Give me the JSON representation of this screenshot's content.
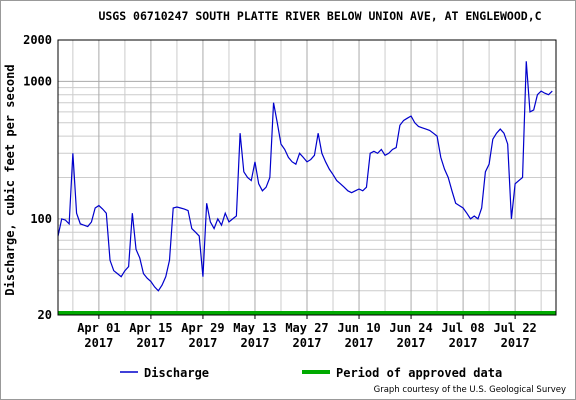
{
  "chart_data": {
    "type": "line",
    "title": "USGS 06710247 SOUTH PLATTE RIVER BELOW UNION AVE, AT ENGLEWOOD,C",
    "y_label": "Discharge, cubic feet per second",
    "credit": "Graph courtesy of the U.S. Geological Survey",
    "log_y": true,
    "grid": true,
    "xlim": [
      "2017-03-21",
      "2017-08-02"
    ],
    "xticks": [
      {
        "value": "2017-04-01",
        "label": "Apr 01 2017"
      },
      {
        "value": "2017-04-15",
        "label": "Apr 15 2017"
      },
      {
        "value": "2017-04-29",
        "label": "Apr 29 2017"
      },
      {
        "value": "2017-05-13",
        "label": "May 13 2017"
      },
      {
        "value": "2017-05-27",
        "label": "May 27 2017"
      },
      {
        "value": "2017-06-10",
        "label": "Jun 10 2017"
      },
      {
        "value": "2017-06-24",
        "label": "Jun 24 2017"
      },
      {
        "value": "2017-07-08",
        "label": "Jul 08 2017"
      },
      {
        "value": "2017-07-22",
        "label": "Jul 22 2017"
      }
    ],
    "xminor": [
      "2017-03-25",
      "2017-04-08",
      "2017-04-22",
      "2017-05-06",
      "2017-05-20",
      "2017-06-03",
      "2017-06-17",
      "2017-07-01",
      "2017-07-15",
      "2017-07-29"
    ],
    "ylim": [
      20,
      2000
    ],
    "yticks": [
      20,
      100,
      1000,
      2000
    ],
    "yminor": [
      30,
      40,
      50,
      60,
      70,
      80,
      90,
      200,
      300,
      400,
      500,
      600,
      700,
      800,
      900
    ],
    "x": [
      "2017-03-21",
      "2017-03-22",
      "2017-03-23",
      "2017-03-24",
      "2017-03-25",
      "2017-03-26",
      "2017-03-27",
      "2017-03-28",
      "2017-03-29",
      "2017-03-30",
      "2017-03-31",
      "2017-04-01",
      "2017-04-02",
      "2017-04-03",
      "2017-04-04",
      "2017-04-05",
      "2017-04-06",
      "2017-04-07",
      "2017-04-08",
      "2017-04-09",
      "2017-04-10",
      "2017-04-11",
      "2017-04-12",
      "2017-04-13",
      "2017-04-14",
      "2017-04-15",
      "2017-04-16",
      "2017-04-17",
      "2017-04-18",
      "2017-04-19",
      "2017-04-20",
      "2017-04-21",
      "2017-04-22",
      "2017-04-23",
      "2017-04-24",
      "2017-04-25",
      "2017-04-26",
      "2017-04-27",
      "2017-04-28",
      "2017-04-29",
      "2017-04-30",
      "2017-05-01",
      "2017-05-02",
      "2017-05-03",
      "2017-05-04",
      "2017-05-05",
      "2017-05-06",
      "2017-05-07",
      "2017-05-08",
      "2017-05-09",
      "2017-05-10",
      "2017-05-11",
      "2017-05-12",
      "2017-05-13",
      "2017-05-14",
      "2017-05-15",
      "2017-05-16",
      "2017-05-17",
      "2017-05-18",
      "2017-05-19",
      "2017-05-20",
      "2017-05-21",
      "2017-05-22",
      "2017-05-23",
      "2017-05-24",
      "2017-05-25",
      "2017-05-26",
      "2017-05-27",
      "2017-05-28",
      "2017-05-29",
      "2017-05-30",
      "2017-05-31",
      "2017-06-01",
      "2017-06-02",
      "2017-06-03",
      "2017-06-04",
      "2017-06-05",
      "2017-06-06",
      "2017-06-07",
      "2017-06-08",
      "2017-06-09",
      "2017-06-10",
      "2017-06-11",
      "2017-06-12",
      "2017-06-13",
      "2017-06-14",
      "2017-06-15",
      "2017-06-16",
      "2017-06-17",
      "2017-06-18",
      "2017-06-19",
      "2017-06-20",
      "2017-06-21",
      "2017-06-22",
      "2017-06-23",
      "2017-06-24",
      "2017-06-25",
      "2017-06-26",
      "2017-06-27",
      "2017-06-28",
      "2017-06-29",
      "2017-06-30",
      "2017-07-01",
      "2017-07-02",
      "2017-07-03",
      "2017-07-04",
      "2017-07-05",
      "2017-07-06",
      "2017-07-07",
      "2017-07-08",
      "2017-07-09",
      "2017-07-10",
      "2017-07-11",
      "2017-07-12",
      "2017-07-13",
      "2017-07-14",
      "2017-07-15",
      "2017-07-16",
      "2017-07-17",
      "2017-07-18",
      "2017-07-19",
      "2017-07-20",
      "2017-07-21",
      "2017-07-22",
      "2017-07-23",
      "2017-07-24",
      "2017-07-25",
      "2017-07-26",
      "2017-07-27",
      "2017-07-28",
      "2017-07-29",
      "2017-07-30",
      "2017-07-31",
      "2017-08-01"
    ],
    "series": [
      {
        "name": "Discharge",
        "color": "#0000cc",
        "values": [
          75,
          100,
          98,
          92,
          300,
          110,
          92,
          90,
          88,
          95,
          120,
          125,
          118,
          110,
          50,
          42,
          40,
          38,
          42,
          45,
          110,
          60,
          52,
          40,
          37,
          35,
          32,
          30,
          33,
          38,
          50,
          120,
          122,
          120,
          118,
          115,
          85,
          80,
          75,
          38,
          130,
          95,
          85,
          100,
          90,
          110,
          95,
          100,
          105,
          420,
          220,
          200,
          190,
          260,
          180,
          160,
          170,
          200,
          700,
          500,
          350,
          320,
          280,
          260,
          250,
          300,
          280,
          260,
          270,
          290,
          420,
          300,
          260,
          230,
          210,
          190,
          180,
          170,
          160,
          155,
          160,
          165,
          160,
          170,
          300,
          310,
          300,
          320,
          290,
          300,
          320,
          330,
          480,
          520,
          540,
          560,
          500,
          470,
          460,
          450,
          440,
          420,
          400,
          280,
          230,
          200,
          160,
          130,
          125,
          120,
          110,
          100,
          105,
          100,
          120,
          220,
          250,
          380,
          420,
          450,
          420,
          350,
          100,
          180,
          190,
          200,
          1400,
          600,
          620,
          800,
          850,
          820,
          800,
          850
        ]
      }
    ],
    "periods": [
      {
        "name": "Period of approved data",
        "color": "#00aa00",
        "start": "2017-03-21",
        "end": "2017-08-02"
      }
    ]
  }
}
